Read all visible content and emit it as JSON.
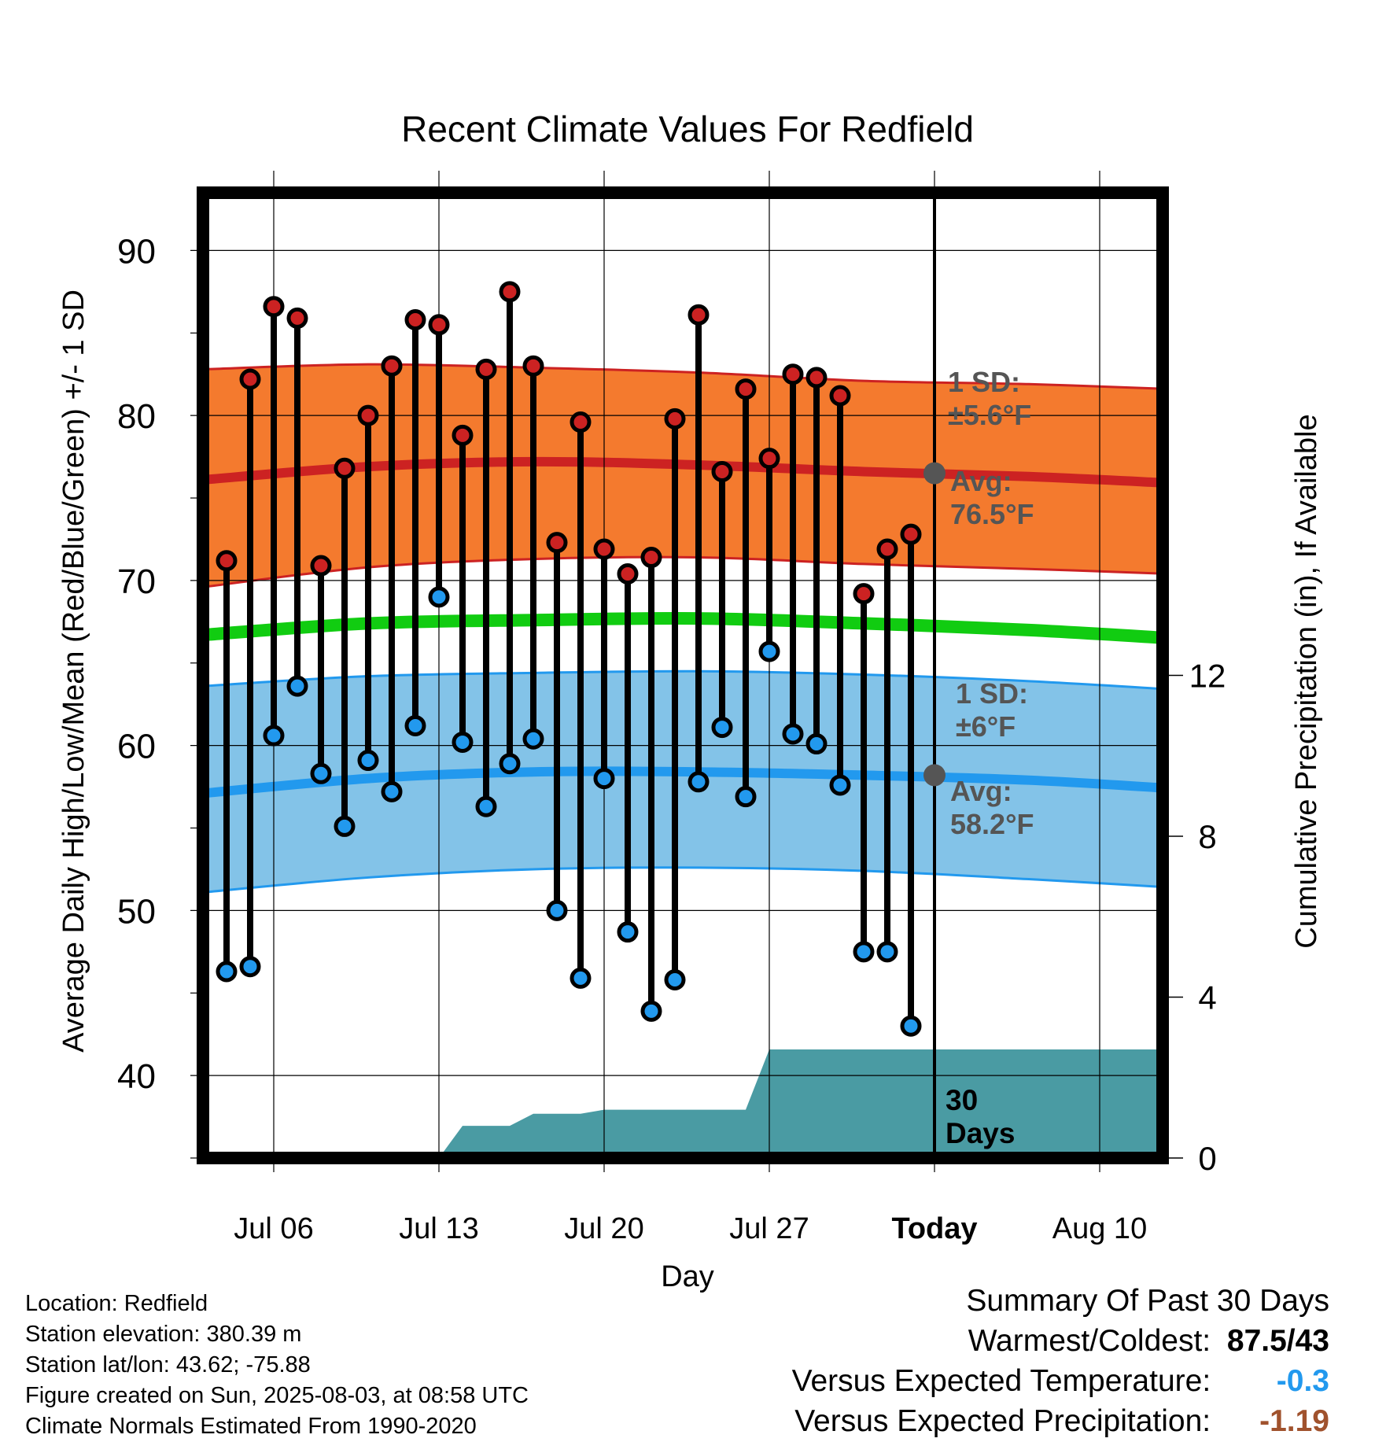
{
  "chart_data": {
    "type": "line",
    "title": "Recent Climate Values For Redfield",
    "xlabel": "Day",
    "ylabel": "Average Daily High/Low/Mean (Red/Blue/Green) +/- 1 SD",
    "y2label": "Cumulative Precipitation (in), If Available",
    "ylim": [
      35,
      93.5
    ],
    "y2lim": [
      0,
      24
    ],
    "x_ticks": [
      "Jul 06",
      "Jul 13",
      "Jul 20",
      "Jul 27",
      "Today",
      "Aug 10"
    ],
    "y_ticks": [
      40,
      50,
      60,
      70,
      80,
      90
    ],
    "y2_ticks": [
      0,
      4,
      8,
      12
    ],
    "grid": true,
    "today_label": "Today",
    "days": [
      "Jul 04",
      "Jul 05",
      "Jul 06",
      "Jul 07",
      "Jul 08",
      "Jul 09",
      "Jul 10",
      "Jul 11",
      "Jul 12",
      "Jul 13",
      "Jul 14",
      "Jul 15",
      "Jul 16",
      "Jul 17",
      "Jul 18",
      "Jul 19",
      "Jul 20",
      "Jul 21",
      "Jul 22",
      "Jul 23",
      "Jul 24",
      "Jul 25",
      "Jul 26",
      "Jul 27",
      "Jul 28",
      "Jul 29",
      "Jul 30",
      "Jul 31",
      "Aug 01",
      "Aug 02"
    ],
    "series": [
      {
        "name": "High",
        "color": "#cc2222",
        "values": [
          71.2,
          82.2,
          86.6,
          85.9,
          70.9,
          76.8,
          80.0,
          83.0,
          85.8,
          85.5,
          78.8,
          82.8,
          87.5,
          83.0,
          72.3,
          79.6,
          71.9,
          70.4,
          71.4,
          79.8,
          86.1,
          76.6,
          81.6,
          77.4,
          82.5,
          82.3,
          81.2,
          69.2,
          71.9,
          72.8
        ]
      },
      {
        "name": "Low",
        "color": "#2299ee",
        "values": [
          46.3,
          46.6,
          60.6,
          63.6,
          58.3,
          55.1,
          59.1,
          57.2,
          61.2,
          69.0,
          60.2,
          56.3,
          58.9,
          60.4,
          50.0,
          45.9,
          58.0,
          48.7,
          43.9,
          45.8,
          57.8,
          61.1,
          56.9,
          65.7,
          60.7,
          60.1,
          57.6,
          47.5,
          47.5,
          43.0
        ]
      }
    ],
    "normals": {
      "days": [
        "Jul 03",
        "Jul 10",
        "Jul 17",
        "Jul 24",
        "Jul 31",
        "Aug 07",
        "Aug 13"
      ],
      "high_avg": [
        76.1,
        76.9,
        77.2,
        77.0,
        76.6,
        76.3,
        75.9
      ],
      "high_sd_band": [
        [
          69.6,
          82.8
        ],
        [
          70.8,
          83.1
        ],
        [
          71.3,
          82.9
        ],
        [
          71.4,
          82.6
        ],
        [
          71.0,
          82.1
        ],
        [
          70.7,
          81.9
        ],
        [
          70.4,
          81.6
        ]
      ],
      "low_avg": [
        57.1,
        58.0,
        58.4,
        58.4,
        58.2,
        57.9,
        57.4
      ],
      "low_sd_band": [
        [
          51.1,
          63.6
        ],
        [
          52.0,
          64.2
        ],
        [
          52.5,
          64.4
        ],
        [
          52.6,
          64.5
        ],
        [
          52.4,
          64.3
        ],
        [
          51.9,
          63.9
        ],
        [
          51.4,
          63.4
        ]
      ],
      "mean": [
        66.7,
        67.4,
        67.6,
        67.7,
        67.4,
        67.0,
        66.5
      ]
    },
    "precip_cumulative": {
      "days": [
        "Jul 13",
        "Jul 14",
        "Jul 15",
        "Jul 16",
        "Jul 17",
        "Jul 18",
        "Jul 19",
        "Jul 20",
        "Jul 21",
        "Jul 22",
        "Jul 23",
        "Jul 24",
        "Jul 25",
        "Jul 26",
        "Jul 27",
        "Aug 13"
      ],
      "values": [
        0.0,
        0.8,
        0.8,
        0.8,
        1.1,
        1.1,
        1.1,
        1.2,
        1.2,
        1.2,
        1.2,
        1.2,
        1.2,
        1.2,
        2.7,
        2.7
      ]
    },
    "annotations": {
      "high_sd": [
        "1 SD:",
        "±5.6°F"
      ],
      "high_avg": [
        "Avg:",
        "76.5°F"
      ],
      "low_sd": [
        "1 SD:",
        "±6°F"
      ],
      "low_avg": [
        "Avg:",
        "58.2°F"
      ],
      "precip_days": [
        "30",
        "Days"
      ]
    },
    "colors": {
      "high_band": "#f47a2e",
      "high_line": "#cc2222",
      "low_band": "#83c3e8",
      "low_line": "#2299ee",
      "mean_line": "#11cc11",
      "precip": "#4a9ba3",
      "annotation": "#555555"
    }
  },
  "info": {
    "location": "Location: Redfield",
    "elevation": "Station elevation: 380.39 m",
    "latlon": "Station lat/lon: 43.62; -75.88",
    "created": "Figure created on Sun, 2025-08-03, at 08:58 UTC",
    "normals": "Climate Normals Estimated From 1990-2020"
  },
  "summary": {
    "title": "Summary Of Past 30 Days",
    "warmest_label": "Warmest/Coldest:",
    "warmest_value": "87.5/43",
    "temp_label": "Versus Expected Temperature:",
    "temp_value": "-0.3",
    "temp_color": "#2299ee",
    "precip_label": "Versus Expected Precipitation:",
    "precip_value": "-1.19",
    "precip_color": "#a0522d"
  }
}
